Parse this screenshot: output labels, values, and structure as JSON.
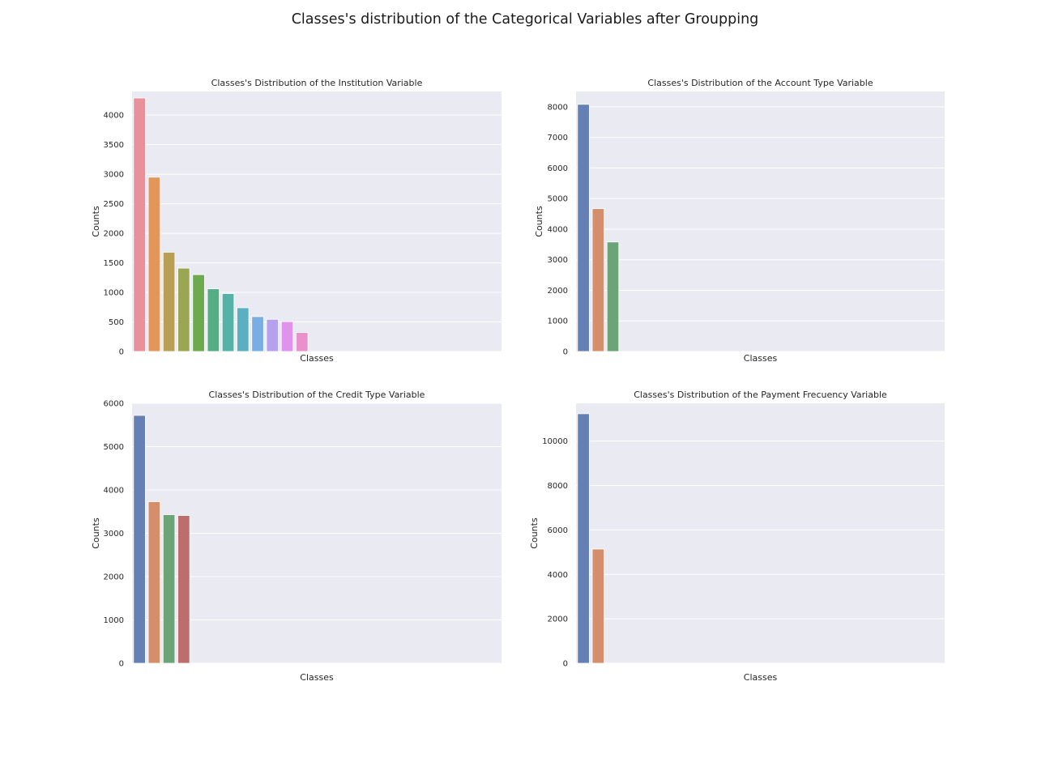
{
  "figure": {
    "suptitle": "Classes's distribution of the Categorical Variables after Groupping"
  },
  "chart_data": [
    {
      "type": "bar",
      "title": "Classes's Distribution of the Institution Variable",
      "xlabel": "Classes",
      "ylabel": "Counts",
      "ylim": [
        0,
        4400
      ],
      "yticks": [
        0,
        500,
        1000,
        1500,
        2000,
        2500,
        3000,
        3500,
        4000
      ],
      "grid": true,
      "n_slots": 25,
      "values": [
        4290,
        2950,
        1680,
        1410,
        1300,
        1060,
        980,
        740,
        590,
        545,
        505,
        320
      ],
      "colors": [
        "#e8919b",
        "#e3965a",
        "#b89f53",
        "#9aa652",
        "#6ca94f",
        "#53ae85",
        "#55b2a8",
        "#5aafc2",
        "#78aee2",
        "#b5a1ee",
        "#e093ea",
        "#e891cb"
      ]
    },
    {
      "type": "bar",
      "title": "Classes's Distribution of the Account Type Variable",
      "xlabel": "Classes",
      "ylabel": "Counts",
      "ylim": [
        0,
        8500
      ],
      "yticks": [
        0,
        1000,
        2000,
        3000,
        4000,
        5000,
        6000,
        7000,
        8000
      ],
      "grid": true,
      "n_slots": 25,
      "values": [
        8080,
        4670,
        3580
      ],
      "colors": [
        "#6480b4",
        "#d48e6c",
        "#6ba476"
      ]
    },
    {
      "type": "bar",
      "title": "Classes's Distribution of the Credit Type Variable",
      "xlabel": "Classes",
      "ylabel": "Counts",
      "ylim": [
        0,
        6000
      ],
      "yticks": [
        0,
        1000,
        2000,
        3000,
        4000,
        5000,
        6000
      ],
      "grid": true,
      "n_slots": 25,
      "values": [
        5720,
        3730,
        3430,
        3410
      ],
      "colors": [
        "#6480b4",
        "#d48e6c",
        "#6ba476",
        "#bf6c6d"
      ]
    },
    {
      "type": "bar",
      "title": "Classes's Distribution of the Payment Frecuency Variable",
      "xlabel": "Classes",
      "ylabel": "Counts",
      "ylim": [
        0,
        11700
      ],
      "yticks": [
        0,
        2000,
        4000,
        6000,
        8000,
        10000
      ],
      "grid": true,
      "n_slots": 25,
      "values": [
        11230,
        5140
      ],
      "colors": [
        "#6480b4",
        "#d48e6c"
      ]
    }
  ]
}
